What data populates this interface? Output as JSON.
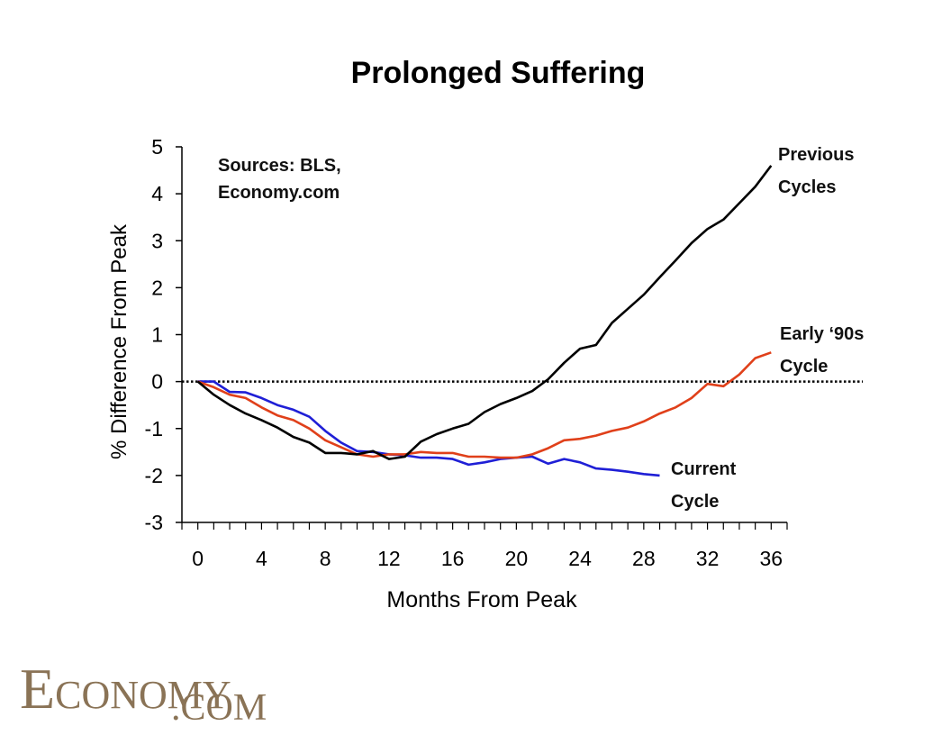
{
  "chart_data": {
    "type": "line",
    "title": "Prolonged Suffering",
    "xlabel": "Months From Peak",
    "ylabel": "% Difference From Peak",
    "xlim": [
      -1,
      37
    ],
    "ylim": [
      -3,
      5
    ],
    "xticks": [
      0,
      4,
      8,
      12,
      16,
      20,
      24,
      28,
      32,
      36
    ],
    "yticks": [
      5,
      4,
      3,
      2,
      1,
      0,
      -1,
      -2,
      -3
    ],
    "baseline_y": 0,
    "grid": false,
    "legend": "inline labels",
    "annotation": "Sources: BLS,\nEconomy.com",
    "series": [
      {
        "name": "Current Cycle",
        "color": "#1f1fd6",
        "x": [
          0,
          1,
          2,
          3,
          4,
          5,
          6,
          7,
          8,
          9,
          10,
          11,
          12,
          13,
          14,
          15,
          16,
          17,
          18,
          19,
          20,
          21,
          22,
          23,
          24,
          25,
          26,
          27,
          28,
          29
        ],
        "y": [
          0,
          0,
          -0.22,
          -0.23,
          -0.35,
          -0.5,
          -0.6,
          -0.75,
          -1.05,
          -1.3,
          -1.48,
          -1.5,
          -1.55,
          -1.57,
          -1.62,
          -1.62,
          -1.65,
          -1.77,
          -1.72,
          -1.65,
          -1.62,
          -1.6,
          -1.75,
          -1.65,
          -1.72,
          -1.85,
          -1.88,
          -1.92,
          -1.97,
          -2.0
        ]
      },
      {
        "name": "Early '90s Cycle",
        "color": "#e0401a",
        "x": [
          0,
          1,
          2,
          3,
          4,
          5,
          6,
          7,
          8,
          9,
          10,
          11,
          12,
          13,
          14,
          15,
          16,
          17,
          18,
          19,
          20,
          21,
          22,
          23,
          24,
          25,
          26,
          27,
          28,
          29,
          30,
          31,
          32,
          33,
          34,
          35,
          36
        ],
        "y": [
          0,
          -0.12,
          -0.28,
          -0.35,
          -0.55,
          -0.72,
          -0.82,
          -1.0,
          -1.25,
          -1.4,
          -1.55,
          -1.6,
          -1.55,
          -1.55,
          -1.5,
          -1.52,
          -1.52,
          -1.6,
          -1.6,
          -1.62,
          -1.62,
          -1.55,
          -1.42,
          -1.25,
          -1.22,
          -1.15,
          -1.05,
          -0.98,
          -0.85,
          -0.68,
          -0.55,
          -0.35,
          -0.05,
          -0.1,
          0.15,
          0.5,
          0.62
        ]
      },
      {
        "name": "Previous Cycles",
        "color": "#000000",
        "x": [
          0,
          1,
          2,
          3,
          4,
          5,
          6,
          7,
          8,
          9,
          10,
          11,
          12,
          13,
          14,
          15,
          16,
          17,
          18,
          19,
          20,
          21,
          22,
          23,
          24,
          25,
          26,
          27,
          28,
          29,
          30,
          31,
          32,
          33,
          34,
          35,
          36
        ],
        "y": [
          0,
          -0.28,
          -0.5,
          -0.68,
          -0.82,
          -0.98,
          -1.18,
          -1.3,
          -1.52,
          -1.52,
          -1.55,
          -1.48,
          -1.65,
          -1.6,
          -1.28,
          -1.12,
          -1.0,
          -0.9,
          -0.65,
          -0.48,
          -0.35,
          -0.2,
          0.05,
          0.4,
          0.7,
          0.78,
          1.25,
          1.55,
          1.85,
          2.22,
          2.58,
          2.95,
          3.25,
          3.45,
          3.8,
          4.15,
          4.6
        ]
      }
    ],
    "series_labels": [
      {
        "line1": "Previous",
        "line2": "Cycles"
      },
      {
        "line1": "Early ‘90s",
        "line2": "Cycle"
      },
      {
        "line1": "Current",
        "line2": "Cycle"
      }
    ]
  },
  "logo": {
    "part1": "E",
    "part2": "CONOMY",
    "part3": ".COM"
  }
}
